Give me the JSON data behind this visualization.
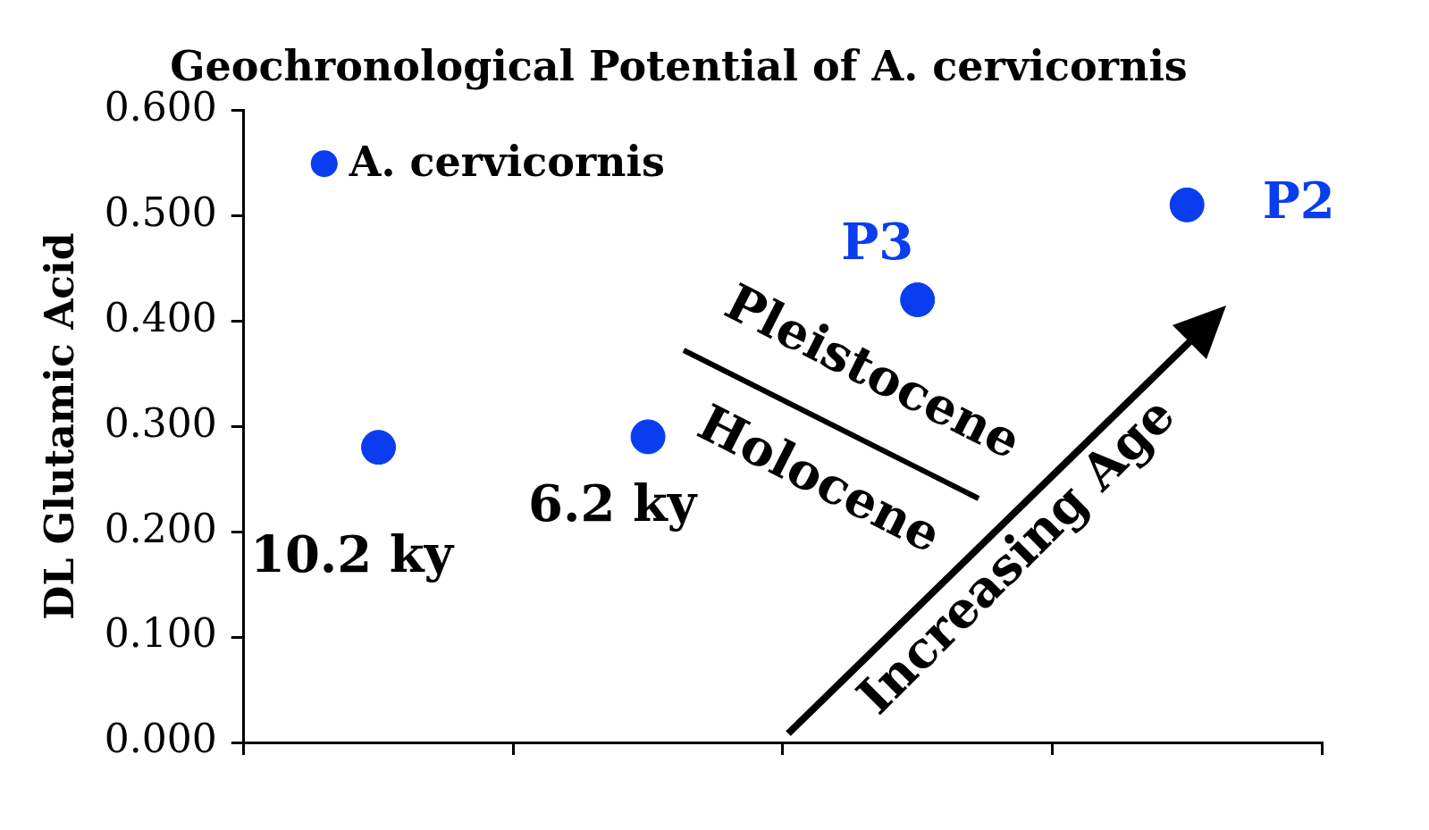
{
  "chart_data": {
    "type": "scatter",
    "title": "Geochronological Potential of A. cervicornis",
    "ylabel": "DL Glutamic Acid",
    "categories": [
      null,
      null,
      null,
      null
    ],
    "series": [
      {
        "name": "A. cervicornis",
        "color": "#0a3cf0",
        "values": [
          0.28,
          0.29,
          0.42,
          0.51
        ]
      }
    ],
    "ylim": [
      0,
      0.6
    ],
    "yticks": [
      {
        "value": 0,
        "label": "0.000"
      },
      {
        "value": 0.1,
        "label": "0.100"
      },
      {
        "value": 0.2,
        "label": "0.200"
      },
      {
        "value": 0.3,
        "label": "0.300"
      },
      {
        "value": 0.4,
        "label": "0.400"
      },
      {
        "value": 0.5,
        "label": "0.500"
      },
      {
        "value": 0.6,
        "label": "0.600"
      }
    ],
    "grid": false,
    "legend": "top left",
    "marker": "circle",
    "annotations": [
      "10.2 ky",
      "6.2 ky",
      "P3",
      "P2",
      "Pleistocene",
      "Holocene",
      "Increasing Age"
    ]
  }
}
